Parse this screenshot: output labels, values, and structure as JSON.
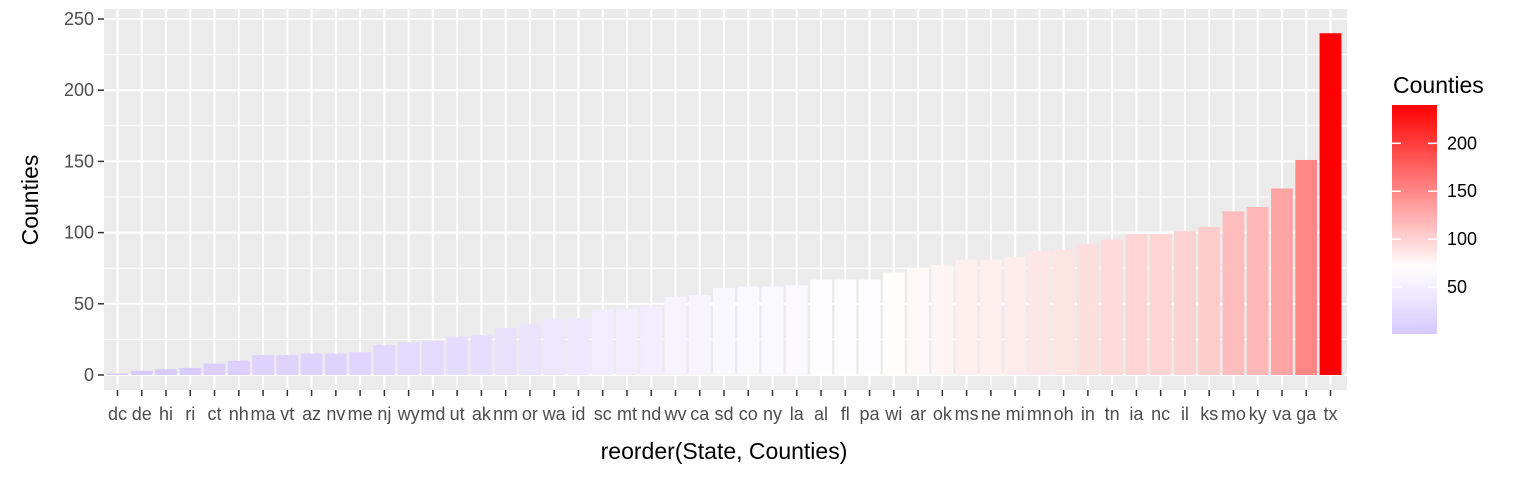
{
  "chart_data": {
    "type": "bar",
    "title": "",
    "xlabel": "reorder(State, Counties)",
    "ylabel": "Counties",
    "ylim": [
      0,
      250
    ],
    "yticks": [
      0,
      50,
      100,
      150,
      200,
      250
    ],
    "grid": true,
    "categories": [
      "dc",
      "de",
      "hi",
      "ri",
      "ct",
      "nh",
      "ma",
      "vt",
      "az",
      "nv",
      "me",
      "nj",
      "wy",
      "md",
      "ut",
      "ak",
      "nm",
      "or",
      "wa",
      "id",
      "sc",
      "mt",
      "nd",
      "wv",
      "ca",
      "sd",
      "co",
      "ny",
      "la",
      "al",
      "fl",
      "pa",
      "wi",
      "ar",
      "ok",
      "ms",
      "ne",
      "mi",
      "mn",
      "oh",
      "in",
      "tn",
      "ia",
      "nc",
      "il",
      "ks",
      "mo",
      "ky",
      "va",
      "ga",
      "tx"
    ],
    "values": [
      1,
      3,
      4,
      5,
      8,
      10,
      14,
      14,
      15,
      15,
      16,
      21,
      23,
      24,
      27,
      28,
      33,
      36,
      39,
      40,
      46,
      47,
      48,
      55,
      56,
      61,
      62,
      62,
      63,
      67,
      67,
      67,
      72,
      75,
      77,
      81,
      81,
      83,
      87,
      88,
      92,
      95,
      99,
      99,
      101,
      104,
      115,
      118,
      131,
      151,
      240
    ],
    "fill_legend": {
      "title": "Counties",
      "ticks": [
        50,
        100,
        150,
        200
      ],
      "low_color": "#d6c8ff",
      "mid_color": "#ffffff",
      "high_color": "#ff0000",
      "midpoint": 70
    },
    "legend_position": "right"
  }
}
